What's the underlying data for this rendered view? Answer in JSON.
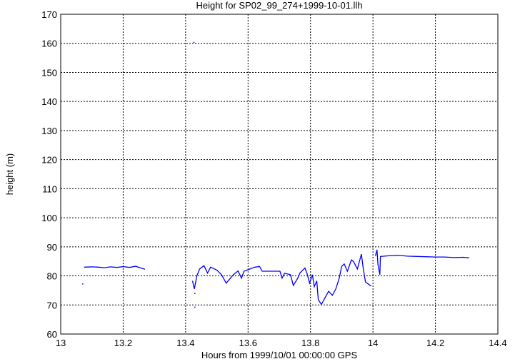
{
  "chart_data": {
    "type": "line",
    "title": "Height for SP02_99_274+1999-10-01.llh",
    "xlabel": "Hours from 1999/10/01 00:00:00 GPS",
    "ylabel": "height (m)",
    "xlim": [
      13,
      14.4
    ],
    "ylim": [
      60,
      170
    ],
    "xticks": [
      "13",
      "13.2",
      "13.4",
      "13.6",
      "13.8",
      "14",
      "14.2",
      "14.4"
    ],
    "yticks": [
      "60",
      "70",
      "80",
      "90",
      "100",
      "110",
      "120",
      "130",
      "140",
      "150",
      "160",
      "170"
    ],
    "grid": true,
    "line_color": "#0000ff",
    "segments": [
      [
        [
          13.075,
          83.0
        ],
        [
          13.1,
          83.1
        ],
        [
          13.12,
          83.0
        ],
        [
          13.14,
          82.8
        ],
        [
          13.16,
          83.1
        ],
        [
          13.18,
          82.9
        ],
        [
          13.2,
          83.2
        ],
        [
          13.22,
          82.9
        ],
        [
          13.24,
          83.3
        ],
        [
          13.26,
          82.6
        ],
        [
          13.27,
          82.3
        ]
      ],
      [
        [
          13.422,
          78.3
        ],
        [
          13.428,
          75.5
        ],
        [
          13.436,
          80.0
        ],
        [
          13.445,
          82.4
        ],
        [
          13.459,
          83.5
        ],
        [
          13.47,
          81.0
        ],
        [
          13.48,
          83.0
        ],
        [
          13.5,
          82.0
        ],
        [
          13.515,
          80.4
        ],
        [
          13.53,
          77.5
        ],
        [
          13.553,
          80.4
        ],
        [
          13.568,
          81.7
        ],
        [
          13.579,
          79.2
        ],
        [
          13.587,
          81.6
        ],
        [
          13.622,
          83.0
        ],
        [
          13.637,
          83.2
        ],
        [
          13.645,
          81.6
        ],
        [
          13.675,
          81.6
        ],
        [
          13.702,
          81.6
        ],
        [
          13.709,
          79.2
        ],
        [
          13.717,
          80.9
        ],
        [
          13.736,
          80.4
        ],
        [
          13.745,
          76.7
        ],
        [
          13.759,
          79.2
        ],
        [
          13.766,
          81.0
        ],
        [
          13.782,
          82.7
        ],
        [
          13.789,
          80.8
        ],
        [
          13.797,
          77.5
        ],
        [
          13.806,
          80.4
        ],
        [
          13.812,
          76.3
        ],
        [
          13.82,
          78.3
        ],
        [
          13.825,
          71.8
        ],
        [
          13.835,
          70.2
        ],
        [
          13.847,
          72.6
        ],
        [
          13.858,
          74.7
        ],
        [
          13.87,
          73.3
        ],
        [
          13.881,
          75.5
        ],
        [
          13.892,
          79.2
        ],
        [
          13.9,
          83.3
        ],
        [
          13.908,
          84.1
        ],
        [
          13.918,
          81.6
        ],
        [
          13.931,
          85.5
        ],
        [
          13.938,
          84.9
        ],
        [
          13.95,
          82.4
        ],
        [
          13.963,
          87.5
        ],
        [
          13.969,
          82.4
        ],
        [
          13.976,
          77.9
        ],
        [
          13.994,
          76.5
        ]
      ],
      [
        [
          14.008,
          86.9
        ],
        [
          14.013,
          89.0
        ],
        [
          14.016,
          84.0
        ],
        [
          14.022,
          80.4
        ],
        [
          14.024,
          86.7
        ],
        [
          14.05,
          86.9
        ],
        [
          14.08,
          87.1
        ],
        [
          14.11,
          86.8
        ],
        [
          14.14,
          86.7
        ],
        [
          14.17,
          86.6
        ],
        [
          14.2,
          86.5
        ],
        [
          14.23,
          86.5
        ],
        [
          14.26,
          86.3
        ],
        [
          14.29,
          86.4
        ],
        [
          14.308,
          86.2
        ]
      ]
    ],
    "isolated_points": [
      [
        13.07,
        77.3
      ],
      [
        13.426,
        160.4
      ],
      [
        13.429,
        74.0
      ],
      [
        13.429,
        69.3
      ]
    ]
  }
}
